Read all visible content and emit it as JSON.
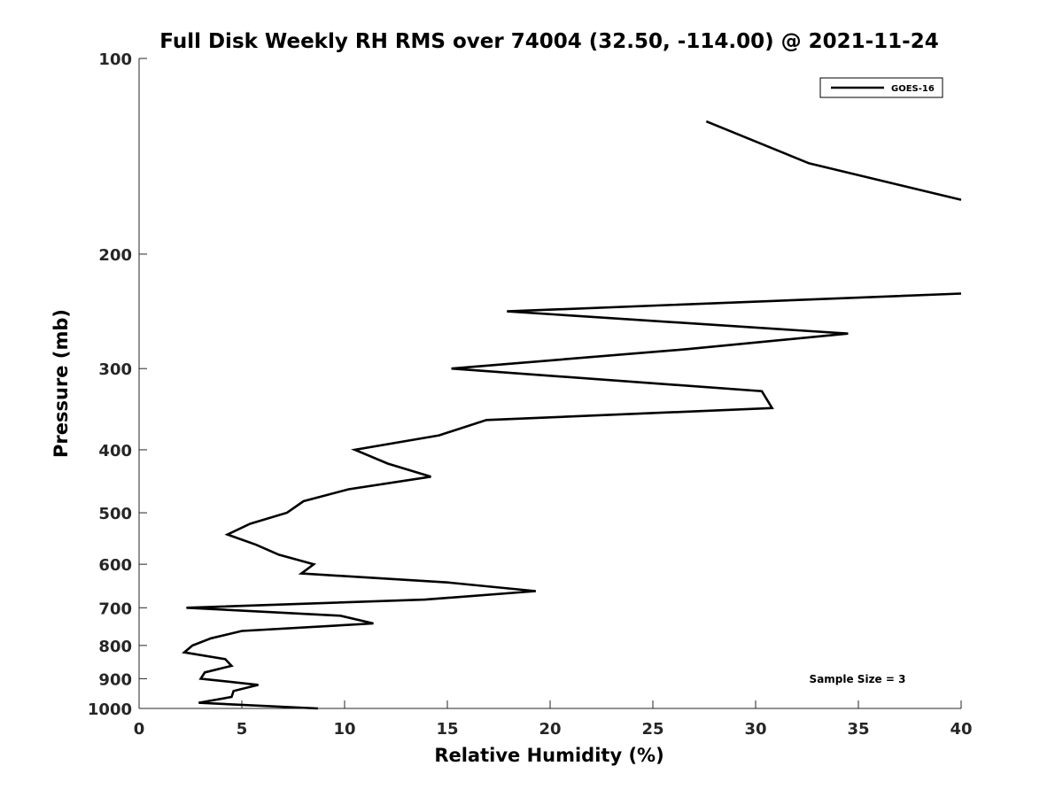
{
  "chart_data": {
    "type": "line",
    "title": "Full Disk Weekly RH RMS over 74004 (32.50, -114.00) @ 2021-11-24",
    "xlabel": "Relative Humidity (%)",
    "ylabel": "Pressure (mb)",
    "xlim": [
      0,
      40
    ],
    "ylim": [
      100,
      1000
    ],
    "y_scale": "log",
    "y_reversed": true,
    "grid": false,
    "legend_position": "top-right",
    "x_ticks": [
      "0",
      "5",
      "10",
      "15",
      "20",
      "25",
      "30",
      "35",
      "40"
    ],
    "y_ticks": [
      "100",
      "200",
      "300",
      "400",
      "500",
      "600",
      "700",
      "800",
      "900",
      "1000"
    ],
    "annotation": "Sample Size = 3",
    "series": [
      {
        "name": "GOES-16",
        "color": "#000000",
        "segments": [
          [
            [
              27.6,
              125
            ],
            [
              32.6,
              145
            ],
            [
              40,
              165
            ]
          ],
          [
            [
              40,
              230
            ],
            [
              17.9,
              245
            ],
            [
              34.5,
              265
            ],
            [
              26.7,
              280
            ],
            [
              15.2,
              300
            ],
            [
              30.3,
              325
            ],
            [
              30.8,
              345
            ],
            [
              16.9,
              360
            ],
            [
              14.6,
              380
            ],
            [
              10.5,
              400
            ],
            [
              12.1,
              420
            ],
            [
              14.2,
              440
            ],
            [
              10.2,
              460
            ],
            [
              8.0,
              480
            ],
            [
              7.2,
              500
            ],
            [
              5.4,
              520
            ],
            [
              4.3,
              540
            ],
            [
              5.7,
              560
            ],
            [
              6.8,
              580
            ],
            [
              8.5,
              600
            ],
            [
              7.9,
              620
            ],
            [
              15.0,
              640
            ],
            [
              19.3,
              660
            ],
            [
              13.9,
              680
            ],
            [
              2.3,
              700
            ],
            [
              9.8,
              720
            ],
            [
              11.4,
              740
            ],
            [
              5.0,
              760
            ],
            [
              3.5,
              780
            ],
            [
              2.6,
              800
            ],
            [
              2.2,
              820
            ],
            [
              4.2,
              840
            ],
            [
              4.5,
              860
            ],
            [
              3.2,
              880
            ],
            [
              3.0,
              900
            ],
            [
              5.8,
              920
            ],
            [
              4.6,
              940
            ],
            [
              4.5,
              960
            ],
            [
              2.9,
              980
            ],
            [
              8.7,
              1000
            ]
          ]
        ]
      }
    ]
  }
}
